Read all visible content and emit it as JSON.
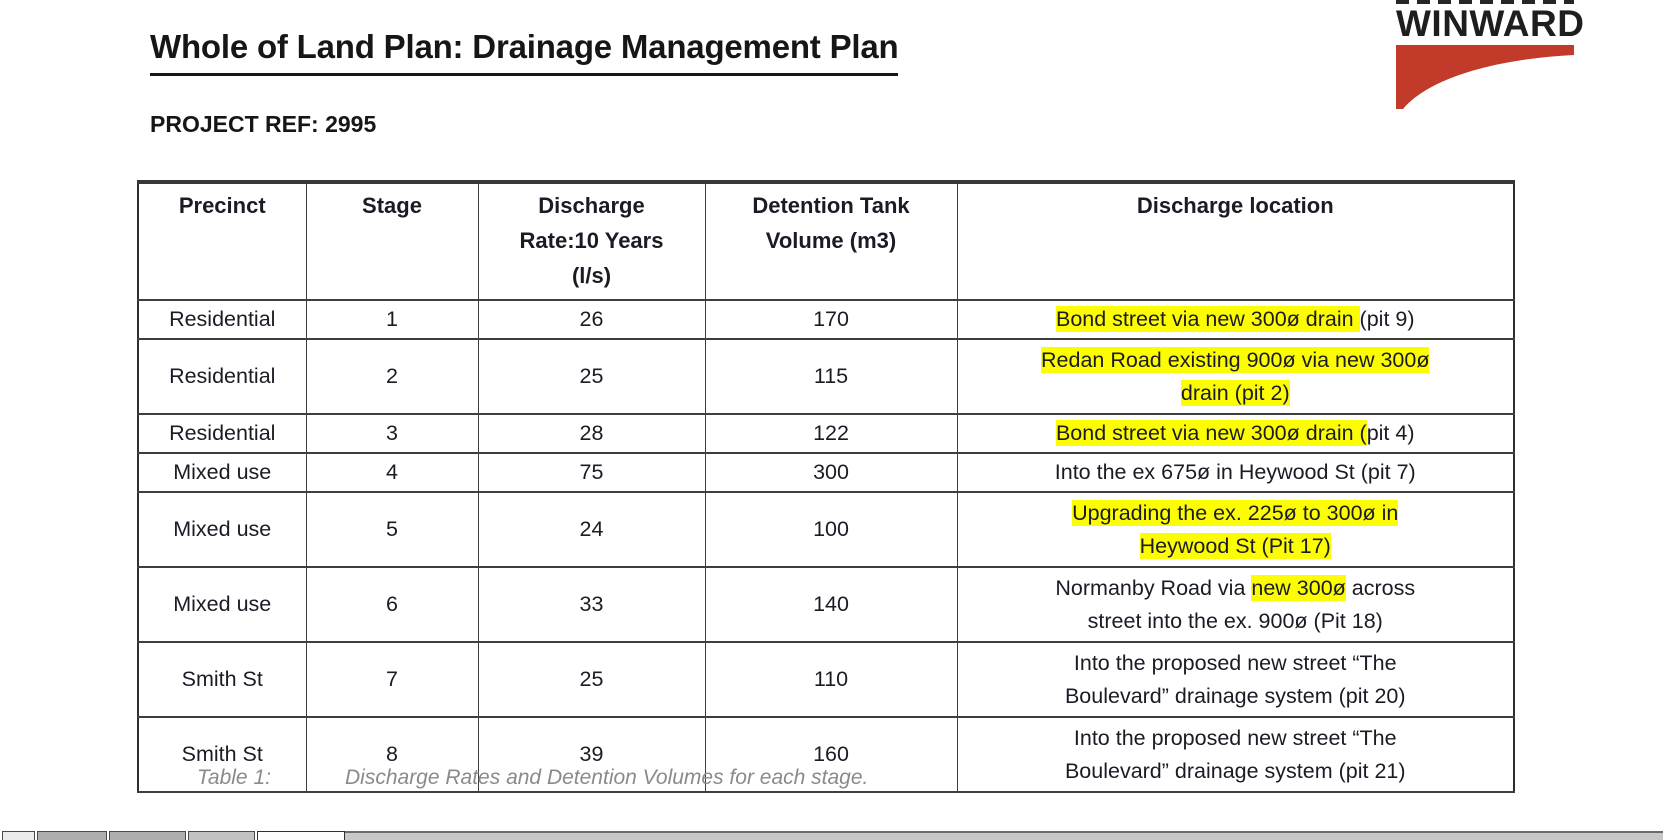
{
  "document": {
    "title": "Whole of Land Plan: Drainage Management Plan",
    "project_ref": "PROJECT REF: 2995"
  },
  "logo": {
    "text": "WINWARD",
    "color": "#c23b2a"
  },
  "table": {
    "highlight_color": "#fdfd02",
    "headers": [
      "Precinct",
      "Stage",
      "Discharge\nRate:10 Years\n(l/s)",
      "Detention Tank\nVolume (m3)",
      "Discharge location"
    ],
    "rows": [
      {
        "precinct": "Residential",
        "stage": "1",
        "rate": "26",
        "volume": "170",
        "location": [
          {
            "t": "Bond street via new 300ø drain ",
            "h": true
          },
          {
            "t": "(pit 9)",
            "h": false
          }
        ]
      },
      {
        "precinct": "Residential",
        "stage": "2",
        "rate": "25",
        "volume": "115",
        "location": [
          {
            "t": "Redan Road existing 900ø via new 300ø\ndrain (pit 2)",
            "h": true
          }
        ]
      },
      {
        "precinct": "Residential",
        "stage": "3",
        "rate": "28",
        "volume": "122",
        "location": [
          {
            "t": "Bond street via new 300ø drain (",
            "h": true
          },
          {
            "t": "pit 4)",
            "h": false
          }
        ]
      },
      {
        "precinct": "Mixed use",
        "stage": "4",
        "rate": "75",
        "volume": "300",
        "location": [
          {
            "t": "Into the ex 675ø in Heywood St (pit 7)",
            "h": false
          }
        ]
      },
      {
        "precinct": "Mixed use",
        "stage": "5",
        "rate": "24",
        "volume": "100",
        "location": [
          {
            "t": "Upgrading the ex. 225ø to 300ø in\nHeywood St (Pit 17)",
            "h": true
          }
        ]
      },
      {
        "precinct": "Mixed use",
        "stage": "6",
        "rate": "33",
        "volume": "140",
        "location": [
          {
            "t": "Normanby Road via ",
            "h": false
          },
          {
            "t": "new 300ø",
            "h": true
          },
          {
            "t": " across\nstreet into the ex. 900ø (Pit 18)",
            "h": false
          }
        ]
      },
      {
        "precinct": "Smith St",
        "stage": "7",
        "rate": "25",
        "volume": "110",
        "location": [
          {
            "t": "Into the proposed new street “The\nBoulevard” drainage system (pit 20)",
            "h": false
          }
        ]
      },
      {
        "precinct": "Smith St",
        "stage": "8",
        "rate": "39",
        "volume": "160",
        "location": [
          {
            "t": "Into the proposed new street “The\nBoulevard” drainage system (pit 21)",
            "h": false
          }
        ]
      }
    ]
  },
  "caption": {
    "label": "Table 1:",
    "text": "Discharge Rates and Detention Volumes for each stage."
  }
}
